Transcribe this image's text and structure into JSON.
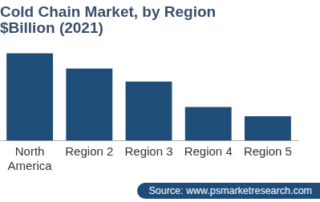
{
  "chart_data": {
    "type": "bar",
    "title": [
      "Cold Chain Market, by Region",
      "$Billion (2021)"
    ],
    "categories": [
      "North America",
      "Region 2",
      "Region 3",
      "Region 4",
      "Region 5"
    ],
    "values": [
      114,
      94,
      77,
      44,
      32
    ],
    "color": "#1e4d78",
    "ylim": [
      0,
      125
    ],
    "grid": false,
    "tick_labels": "x",
    "source": "Source: www.psmarketresearch.com"
  }
}
